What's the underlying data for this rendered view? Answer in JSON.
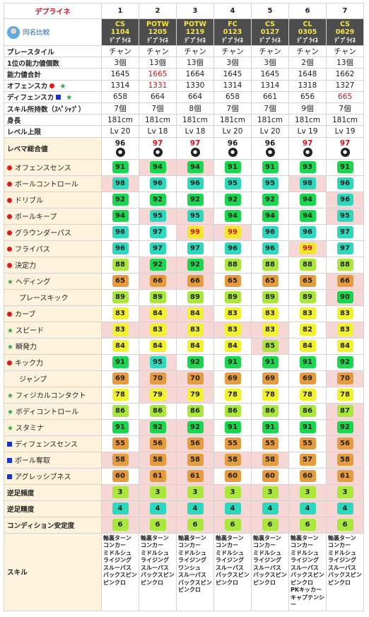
{
  "header": {
    "title": "デプライネ",
    "compare": "同名比較",
    "cols": [
      "1",
      "2",
      "3",
      "4",
      "5",
      "6",
      "7"
    ]
  },
  "cards": [
    {
      "type": "CS",
      "num": "1104",
      "name": "ﾃﾞﾌﾟﾗｲﾈ"
    },
    {
      "type": "POTW",
      "num": "1205",
      "name": "ﾃﾞﾌﾟﾗｲﾈ"
    },
    {
      "type": "POTW",
      "num": "1219",
      "name": "ﾃﾞﾌﾟﾗｲﾈ"
    },
    {
      "type": "FC",
      "num": "0123",
      "name": "ﾃﾞﾌﾟﾗｲﾈ"
    },
    {
      "type": "CS",
      "num": "0127",
      "name": "ﾃﾞﾌﾟﾗｲﾈ"
    },
    {
      "type": "CL",
      "num": "0305",
      "name": "ﾃﾞﾌﾟﾗｲﾈ"
    },
    {
      "type": "CS",
      "num": "0629",
      "name": "ﾃﾞﾌﾟﾗｲﾈ"
    }
  ],
  "info_rows": [
    {
      "label": "プレースタイル",
      "vals": [
        "チャン",
        "チャン",
        "チャン",
        "チャン",
        "チャン",
        "チャン",
        "チャン"
      ]
    },
    {
      "label": "1位の能力値個数",
      "vals": [
        "3個",
        "13個",
        "13個",
        "3個",
        "3個",
        "2個",
        "13個"
      ]
    },
    {
      "label": "能力値合計",
      "vals": [
        "1645",
        "1665",
        "1664",
        "1645",
        "1645",
        "1648",
        "1662"
      ],
      "red": [
        1
      ]
    },
    {
      "label": "オフェンスカ",
      "vals": [
        "1314",
        "1331",
        "1330",
        "1314",
        "1314",
        "1318",
        "1327"
      ],
      "red": [
        1
      ],
      "marks": [
        "dot",
        "star"
      ]
    },
    {
      "label": "ディフェンスカ",
      "vals": [
        "658",
        "664",
        "664",
        "658",
        "661",
        "656",
        "665"
      ],
      "red": [
        6
      ],
      "marks": [
        "sq",
        "star"
      ]
    },
    {
      "label": "スキル所持数（ｽﾍﾟｼｬﾌﾟ）",
      "vals": [
        "7個",
        "7個",
        "8個",
        "7個",
        "7個",
        "9個",
        "7個"
      ]
    },
    {
      "label": "身長",
      "vals": [
        "181cm",
        "181cm",
        "181cm",
        "181cm",
        "181cm",
        "181cm",
        "181cm"
      ]
    },
    {
      "label": "レベル上限",
      "vals": [
        "Lv 20",
        "Lv 18",
        "Lv 18",
        "Lv 20",
        "Lv 20",
        "Lv 19",
        "Lv 19"
      ]
    }
  ],
  "rating": {
    "label": "レベマ総合値",
    "vals": [
      "96",
      "97",
      "97",
      "96",
      "96",
      "97",
      "97"
    ],
    "red": [
      1,
      2,
      5,
      6
    ]
  },
  "stats": [
    {
      "label": "オフェンスセンス",
      "mark": "dot",
      "vals": [
        "91",
        "94",
        "94",
        "91",
        "91",
        "93",
        "91"
      ],
      "colors": [
        "g",
        "g",
        "g",
        "g",
        "g",
        "g",
        "g"
      ],
      "bg": [
        0,
        1,
        1,
        0,
        0,
        0,
        0
      ]
    },
    {
      "label": "ボールコントロール",
      "mark": "dot",
      "vals": [
        "98",
        "96",
        "96",
        "95",
        "95",
        "98",
        "96"
      ],
      "colors": [
        "cy",
        "cy",
        "cy",
        "cy",
        "cy",
        "cy",
        "cy"
      ],
      "bg": [
        1,
        0,
        0,
        0,
        0,
        1,
        0
      ]
    },
    {
      "label": "ドリブル",
      "mark": "dot",
      "vals": [
        "92",
        "92",
        "92",
        "92",
        "92",
        "94",
        "96"
      ],
      "colors": [
        "g",
        "g",
        "g",
        "g",
        "g",
        "g",
        "cy"
      ],
      "bg": [
        0,
        0,
        0,
        0,
        0,
        0,
        1
      ]
    },
    {
      "label": "ボールキープ",
      "mark": "dot",
      "vals": [
        "94",
        "95",
        "95",
        "94",
        "94",
        "94",
        "95"
      ],
      "colors": [
        "g",
        "cy",
        "cy",
        "g",
        "g",
        "g",
        "cy"
      ],
      "bg": [
        0,
        1,
        1,
        0,
        0,
        0,
        1
      ]
    },
    {
      "label": "グラウンダーパス",
      "mark": "dot",
      "vals": [
        "96",
        "97",
        "99",
        "99",
        "96",
        "96",
        "97"
      ],
      "colors": [
        "cy",
        "cy",
        "red",
        "red",
        "cy",
        "cy",
        "cy"
      ],
      "bg": [
        0,
        0,
        1,
        1,
        0,
        0,
        0
      ],
      "redtxt": [
        2,
        3
      ]
    },
    {
      "label": "フライパス",
      "mark": "dot",
      "vals": [
        "96",
        "97",
        "97",
        "96",
        "96",
        "99",
        "97"
      ],
      "colors": [
        "cy",
        "cy",
        "cy",
        "cy",
        "cy",
        "red",
        "cy"
      ],
      "bg": [
        0,
        0,
        0,
        0,
        0,
        1,
        0
      ],
      "redtxt": [
        5
      ]
    },
    {
      "label": "決定力",
      "mark": "dot",
      "vals": [
        "88",
        "92",
        "92",
        "88",
        "88",
        "88",
        "88"
      ],
      "colors": [
        "lg",
        "g",
        "g",
        "lg",
        "lg",
        "lg",
        "lg"
      ],
      "bg": [
        0,
        1,
        1,
        0,
        0,
        0,
        0
      ]
    },
    {
      "label": "ヘディング",
      "mark": "star",
      "vals": [
        "65",
        "66",
        "66",
        "65",
        "65",
        "65",
        "66"
      ],
      "colors": [
        "or",
        "or",
        "or",
        "or",
        "or",
        "or",
        "or"
      ],
      "bg": [
        0,
        1,
        1,
        0,
        0,
        0,
        1
      ]
    },
    {
      "label": "プレースキック",
      "mark": "none",
      "vals": [
        "89",
        "89",
        "89",
        "89",
        "89",
        "89",
        "90"
      ],
      "colors": [
        "lg",
        "lg",
        "lg",
        "lg",
        "lg",
        "lg",
        "g"
      ],
      "bg": [
        0,
        0,
        0,
        0,
        0,
        0,
        1
      ]
    },
    {
      "label": "カーブ",
      "mark": "dot",
      "vals": [
        "83",
        "84",
        "84",
        "83",
        "83",
        "83",
        "83"
      ],
      "colors": [
        "ye",
        "ye",
        "ye",
        "ye",
        "ye",
        "ye",
        "ye"
      ],
      "bg": [
        0,
        1,
        1,
        0,
        0,
        0,
        0
      ]
    },
    {
      "label": "スピード",
      "mark": "star",
      "vals": [
        "83",
        "83",
        "83",
        "83",
        "83",
        "82",
        "83"
      ],
      "colors": [
        "ye",
        "ye",
        "ye",
        "ye",
        "ye",
        "ye",
        "ye"
      ],
      "bg": [
        1,
        1,
        1,
        1,
        1,
        0,
        1
      ]
    },
    {
      "label": "瞬発力",
      "mark": "star",
      "vals": [
        "84",
        "84",
        "84",
        "84",
        "85",
        "84",
        "84"
      ],
      "colors": [
        "ye",
        "ye",
        "ye",
        "ye",
        "lg",
        "ye",
        "ye"
      ],
      "bg": [
        0,
        0,
        0,
        0,
        1,
        0,
        0
      ]
    },
    {
      "label": "キック力",
      "mark": "dot",
      "vals": [
        "91",
        "95",
        "92",
        "91",
        "91",
        "91",
        "92"
      ],
      "colors": [
        "g",
        "cy",
        "g",
        "g",
        "g",
        "g",
        "g"
      ],
      "bg": [
        0,
        1,
        0,
        0,
        0,
        0,
        0
      ]
    },
    {
      "label": "ジャンプ",
      "mark": "none",
      "vals": [
        "69",
        "70",
        "70",
        "69",
        "69",
        "69",
        "70"
      ],
      "colors": [
        "or",
        "or",
        "or",
        "or",
        "or",
        "or",
        "or"
      ],
      "bg": [
        0,
        1,
        1,
        0,
        0,
        0,
        1
      ]
    },
    {
      "label": "フィジカルコンタクト",
      "mark": "star",
      "vals": [
        "78",
        "79",
        "79",
        "78",
        "78",
        "78",
        "78"
      ],
      "colors": [
        "ye",
        "ye",
        "ye",
        "ye",
        "ye",
        "ye",
        "ye"
      ],
      "bg": [
        0,
        1,
        1,
        0,
        0,
        0,
        0
      ]
    },
    {
      "label": "ボディコントロール",
      "mark": "star",
      "vals": [
        "86",
        "86",
        "86",
        "86",
        "86",
        "86",
        "87"
      ],
      "colors": [
        "lg",
        "lg",
        "lg",
        "lg",
        "lg",
        "lg",
        "lg"
      ],
      "bg": [
        0,
        0,
        0,
        0,
        0,
        0,
        1
      ]
    },
    {
      "label": "スタミナ",
      "mark": "star",
      "vals": [
        "91",
        "92",
        "92",
        "91",
        "91",
        "91",
        "92"
      ],
      "colors": [
        "g",
        "g",
        "g",
        "g",
        "g",
        "g",
        "g"
      ],
      "bg": [
        0,
        1,
        1,
        0,
        0,
        0,
        1
      ]
    },
    {
      "label": "ディフェンスセンス",
      "mark": "sq",
      "vals": [
        "55",
        "56",
        "56",
        "55",
        "55",
        "55",
        "56"
      ],
      "colors": [
        "or",
        "or",
        "or",
        "or",
        "or",
        "or",
        "or"
      ],
      "bg": [
        0,
        1,
        1,
        0,
        0,
        0,
        1
      ]
    },
    {
      "label": "ボール奪取",
      "mark": "sq",
      "vals": [
        "58",
        "58",
        "58",
        "58",
        "58",
        "57",
        "58"
      ],
      "colors": [
        "or",
        "or",
        "or",
        "or",
        "or",
        "or",
        "or"
      ],
      "bg": [
        1,
        1,
        1,
        1,
        1,
        0,
        1
      ]
    },
    {
      "label": "アグレッシブネス",
      "mark": "sq",
      "vals": [
        "60",
        "61",
        "61",
        "60",
        "60",
        "60",
        "61"
      ],
      "colors": [
        "or",
        "or",
        "or",
        "or",
        "or",
        "or",
        "or"
      ],
      "bg": [
        0,
        1,
        1,
        0,
        0,
        0,
        1
      ]
    }
  ],
  "extra": [
    {
      "label": "逆足頻度",
      "vals": [
        "3",
        "3",
        "3",
        "3",
        "3",
        "3",
        "3"
      ],
      "color": "lg"
    },
    {
      "label": "逆足精度",
      "vals": [
        "4",
        "4",
        "4",
        "4",
        "4",
        "4",
        "4"
      ],
      "color": "cy"
    },
    {
      "label": "コンディション安定度",
      "vals": [
        "6",
        "6",
        "6",
        "6",
        "6",
        "6",
        "6"
      ],
      "color": "lg"
    }
  ],
  "skills": {
    "label": "スキル",
    "vals": [
      "軸裏ターン\nコンカー\nミドルシュ\nライジング\nスルーパス\nバックスピン\nピンクロ",
      "軸裏ターン\nコンカー\nミドルシュ\nライジング\nスルーパス\nバックスピン\nピンクロ",
      "軸裏ターン\nコンカー\nミドルシュ\nライジング\nワンシュ\nスルーパス\nバックスピン\nピンクロ",
      "軸裏ターン\nコンカー\nミドルシュ\nライジング\nスルーパス\nバックスピン\nピンクロ",
      "軸裏ターン\nコンカー\nミドルシュ\nライジング\nスルーパス\nバックスピン\nピンクロ",
      "軸裏ターン\nコンカー\nミドルシュ\nライジング\nスルーパス\nバックスピン\nピンクロ\nPKキッカー\nキャプテンシー",
      "軸裏ターン\nコンカー\nミドルシュ\nライジング\nスルーパス\nバックスピン\nピンクロ"
    ]
  }
}
